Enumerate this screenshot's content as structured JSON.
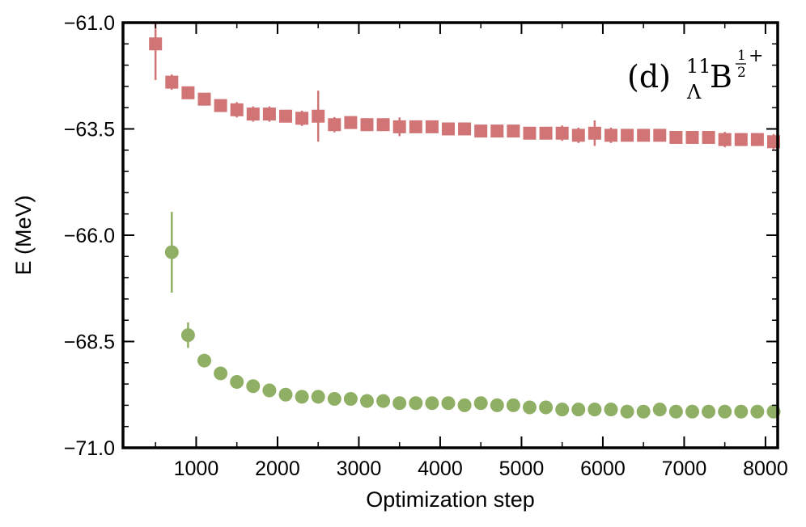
{
  "chart_data": {
    "type": "scatter",
    "title": "",
    "xlabel": "Optimization step",
    "ylabel": "E (MeV)",
    "xlim": [
      100,
      8150
    ],
    "ylim": [
      -71.0,
      -61.0
    ],
    "x_ticks": [
      1000,
      2000,
      3000,
      4000,
      5000,
      6000,
      7000,
      8000
    ],
    "x_tick_labels": [
      "1000",
      "2000",
      "3000",
      "4000",
      "5000",
      "6000",
      "7000",
      "8000"
    ],
    "y_ticks": [
      -61.0,
      -63.5,
      -66.0,
      -68.5,
      -71.0
    ],
    "y_tick_labels": [
      "−61.0",
      "−63.5",
      "−66.0",
      "−68.5",
      "−71.0"
    ],
    "annotation": {
      "label": "(d)",
      "mass_number": "11",
      "hyperon": "Λ",
      "element": "B",
      "spin_numerator": "1",
      "spin_denominator": "2",
      "parity": "+"
    },
    "series": [
      {
        "name": "red squares",
        "marker": "square",
        "color": "#d07475",
        "x": [
          500,
          700,
          900,
          1100,
          1300,
          1500,
          1700,
          1900,
          2100,
          2300,
          2500,
          2700,
          2900,
          3100,
          3300,
          3500,
          3700,
          3900,
          4100,
          4300,
          4500,
          4700,
          4900,
          5100,
          5300,
          5500,
          5700,
          5900,
          6100,
          6300,
          6500,
          6700,
          6900,
          7100,
          7300,
          7500,
          7700,
          7900,
          8100
        ],
        "y": [
          -61.5,
          -62.4,
          -62.65,
          -62.8,
          -62.95,
          -63.05,
          -63.15,
          -63.15,
          -63.2,
          -63.25,
          -63.2,
          -63.4,
          -63.35,
          -63.4,
          -63.4,
          -63.45,
          -63.45,
          -63.45,
          -63.5,
          -63.5,
          -63.55,
          -63.55,
          -63.55,
          -63.6,
          -63.6,
          -63.6,
          -63.65,
          -63.6,
          -63.65,
          -63.65,
          -63.65,
          -63.65,
          -63.7,
          -63.7,
          -63.7,
          -63.75,
          -63.75,
          -63.75,
          -63.8
        ],
        "yerr": [
          0.85,
          0.18,
          0.12,
          0.12,
          0.12,
          0.18,
          0.18,
          0.18,
          0.15,
          0.18,
          0.6,
          0.18,
          0.15,
          0.15,
          0.12,
          0.22,
          0.15,
          0.15,
          0.12,
          0.15,
          0.15,
          0.15,
          0.12,
          0.15,
          0.15,
          0.18,
          0.18,
          0.3,
          0.18,
          0.15,
          0.15,
          0.15,
          0.15,
          0.15,
          0.12,
          0.18,
          0.15,
          0.15,
          0.18
        ]
      },
      {
        "name": "green circles",
        "marker": "circle",
        "color": "#8faf64",
        "x": [
          700,
          900,
          1100,
          1300,
          1500,
          1700,
          1900,
          2100,
          2300,
          2500,
          2700,
          2900,
          3100,
          3300,
          3500,
          3700,
          3900,
          4100,
          4300,
          4500,
          4700,
          4900,
          5100,
          5300,
          5500,
          5700,
          5900,
          6100,
          6300,
          6500,
          6700,
          6900,
          7100,
          7300,
          7500,
          7700,
          7900,
          8100
        ],
        "y": [
          -66.4,
          -68.35,
          -68.95,
          -69.25,
          -69.45,
          -69.55,
          -69.65,
          -69.75,
          -69.8,
          -69.8,
          -69.85,
          -69.85,
          -69.9,
          -69.9,
          -69.95,
          -69.95,
          -69.95,
          -69.95,
          -70.0,
          -69.95,
          -70.0,
          -70.0,
          -70.05,
          -70.05,
          -70.1,
          -70.1,
          -70.1,
          -70.1,
          -70.15,
          -70.15,
          -70.1,
          -70.15,
          -70.15,
          -70.15,
          -70.15,
          -70.15,
          -70.15,
          -70.15
        ],
        "yerr": [
          0.95,
          0.3,
          0.12,
          0.08,
          0.06,
          0.05,
          0.05,
          0.05,
          0.05,
          0.05,
          0.05,
          0.05,
          0.05,
          0.05,
          0.05,
          0.05,
          0.05,
          0.05,
          0.05,
          0.05,
          0.05,
          0.05,
          0.05,
          0.05,
          0.05,
          0.05,
          0.05,
          0.05,
          0.05,
          0.05,
          0.05,
          0.05,
          0.05,
          0.05,
          0.05,
          0.05,
          0.05,
          0.05
        ]
      }
    ]
  }
}
